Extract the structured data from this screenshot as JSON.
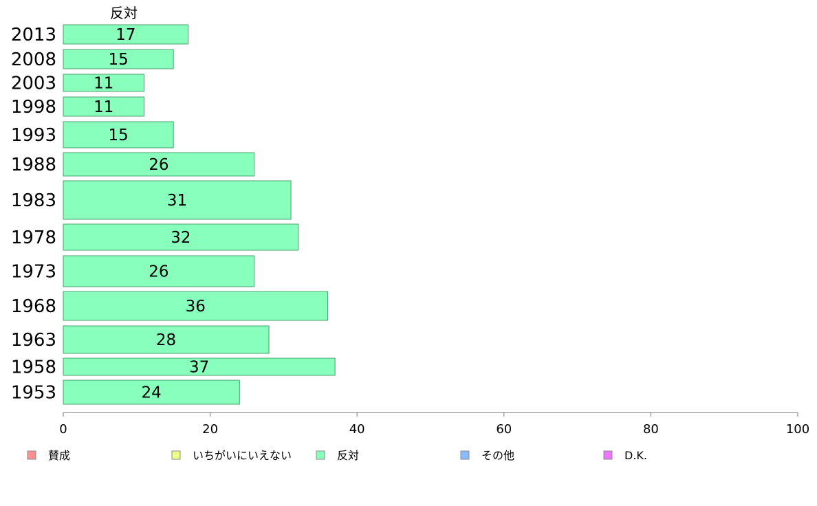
{
  "chart_data": {
    "type": "bar",
    "orientation": "horizontal",
    "column_title": "反対",
    "categories": [
      "2013",
      "2008",
      "2003",
      "1998",
      "1993",
      "1988",
      "1983",
      "1978",
      "1973",
      "1968",
      "1963",
      "1958",
      "1953"
    ],
    "values": [
      17,
      15,
      11,
      11,
      15,
      26,
      31,
      32,
      26,
      36,
      28,
      37,
      24
    ],
    "bar_color": "#88ffbb",
    "xlim": [
      0,
      100
    ],
    "xticks": [
      0,
      20,
      40,
      60,
      80,
      100
    ],
    "legend": {
      "position": "bottom",
      "items": [
        {
          "label": "賛成",
          "color": "#ff8f8f"
        },
        {
          "label": "いちがいにいえない",
          "color": "#eeff88"
        },
        {
          "label": "反対",
          "color": "#88ffbb"
        },
        {
          "label": "その他",
          "color": "#88bbff"
        },
        {
          "label": "D.K.",
          "color": "#ee77ff"
        }
      ]
    }
  }
}
